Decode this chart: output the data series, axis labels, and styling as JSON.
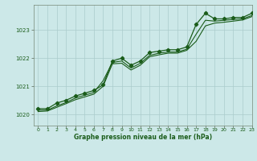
{
  "title": "Graphe pression niveau de la mer (hPa)",
  "bg_color": "#cce8e8",
  "grid_color": "#aacccc",
  "line_color": "#1a5c1a",
  "xlim": [
    -0.5,
    23
  ],
  "ylim": [
    1019.6,
    1023.9
  ],
  "yticks": [
    1020,
    1021,
    1022,
    1023
  ],
  "xticks": [
    0,
    1,
    2,
    3,
    4,
    5,
    6,
    7,
    8,
    9,
    10,
    11,
    12,
    13,
    14,
    15,
    16,
    17,
    18,
    19,
    20,
    21,
    22,
    23
  ],
  "series1": {
    "x": [
      0,
      1,
      2,
      3,
      4,
      5,
      6,
      7,
      8,
      9,
      10,
      11,
      12,
      13,
      14,
      15,
      16,
      17,
      18,
      19,
      20,
      21,
      22,
      23
    ],
    "y": [
      1020.2,
      1020.2,
      1020.4,
      1020.5,
      1020.65,
      1020.75,
      1020.85,
      1021.05,
      1021.9,
      1022.0,
      1021.75,
      1021.9,
      1022.2,
      1022.25,
      1022.3,
      1022.3,
      1022.4,
      1023.2,
      1023.6,
      1023.4,
      1023.4,
      1023.45,
      1023.45,
      1023.6
    ]
  },
  "series2": {
    "x": [
      0,
      1,
      2,
      3,
      4,
      5,
      6,
      7,
      8,
      9,
      10,
      11,
      12,
      13,
      14,
      15,
      16,
      17,
      18,
      19,
      20,
      21,
      22,
      23
    ],
    "y": [
      1020.15,
      1020.15,
      1020.3,
      1020.42,
      1020.58,
      1020.68,
      1020.78,
      1021.2,
      1021.85,
      1021.9,
      1021.65,
      1021.82,
      1022.1,
      1022.18,
      1022.22,
      1022.22,
      1022.32,
      1022.85,
      1023.35,
      1023.32,
      1023.35,
      1023.38,
      1023.4,
      1023.52
    ]
  },
  "series3": {
    "x": [
      0,
      1,
      2,
      3,
      4,
      5,
      6,
      7,
      8,
      9,
      10,
      11,
      12,
      13,
      14,
      15,
      16,
      17,
      18,
      19,
      20,
      21,
      22,
      23
    ],
    "y": [
      1020.1,
      1020.12,
      1020.25,
      1020.38,
      1020.52,
      1020.62,
      1020.72,
      1021.0,
      1021.8,
      1021.82,
      1021.58,
      1021.75,
      1022.05,
      1022.12,
      1022.18,
      1022.18,
      1022.28,
      1022.6,
      1023.15,
      1023.25,
      1023.28,
      1023.32,
      1023.36,
      1023.48
    ]
  }
}
